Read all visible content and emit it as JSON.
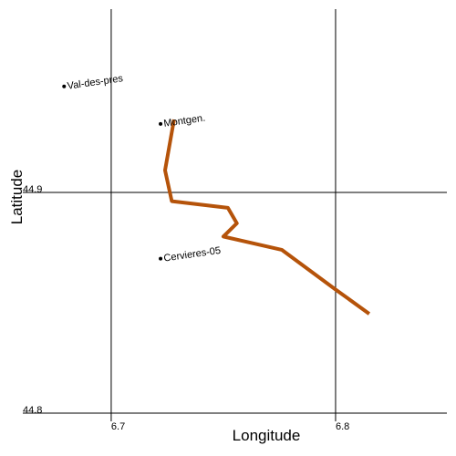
{
  "chart_data": {
    "type": "line",
    "x_label": "Longitude",
    "y_label": "Latitude",
    "x": [
      6.728,
      6.724,
      6.727,
      6.752,
      6.756,
      6.75,
      6.776,
      6.8,
      6.815
    ],
    "series": [
      {
        "color": "#b5530a",
        "values": [
          44.933,
          44.91,
          44.896,
          44.893,
          44.886,
          44.88,
          44.874,
          44.856,
          44.845
        ]
      }
    ],
    "points": {
      "names": [
        "Val-des-pres",
        "Montgen.",
        "Cervieres-05"
      ],
      "x": [
        6.679,
        6.722,
        6.722
      ],
      "y": [
        44.948,
        44.931,
        44.87
      ],
      "color": "#000000"
    },
    "xlim": [
      6.6606,
      6.8496
    ],
    "ylim": [
      44.7963,
      44.983
    ],
    "xticks": [
      6.7,
      6.8
    ],
    "yticks": [
      44.8,
      44.9
    ],
    "grid": true
  }
}
